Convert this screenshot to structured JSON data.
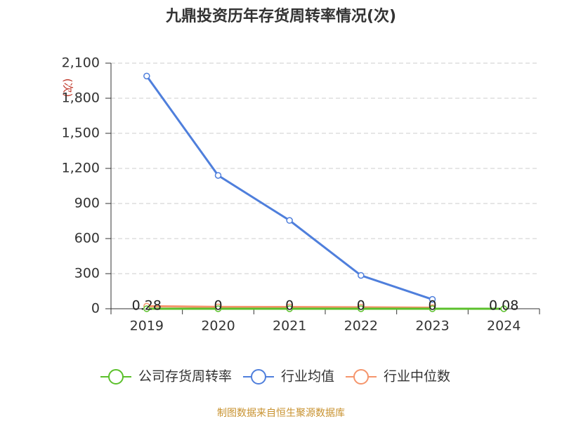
{
  "chart_data": {
    "type": "line",
    "title": "九鼎投资历年存货周转率情况(次)",
    "y_label": "(次)",
    "categories": [
      "2019",
      "2020",
      "2021",
      "2022",
      "2023",
      "2024"
    ],
    "series": [
      {
        "name": "公司存货周转率",
        "color": "#5bc02b",
        "values": [
          0.28,
          0,
          0,
          0,
          0,
          0.08
        ],
        "labels": true
      },
      {
        "name": "行业均值",
        "color": "#4f7fdc",
        "values": [
          1990,
          1140,
          755,
          285,
          80,
          null
        ]
      },
      {
        "name": "行业中位数",
        "color": "#f5956c",
        "values": [
          22,
          16,
          15,
          13,
          9,
          null
        ]
      }
    ],
    "ylim": [
      0,
      2100
    ],
    "yticks": [
      0,
      300,
      600,
      900,
      {
        "value": 1200,
        "label": "1,200"
      },
      {
        "value": 1500,
        "label": "1,500"
      },
      {
        "value": 1800,
        "label": "1,800"
      },
      {
        "value": 2100,
        "label": "2,100"
      }
    ],
    "grid": true,
    "source": "制图数据来自恒生聚源数据库"
  }
}
